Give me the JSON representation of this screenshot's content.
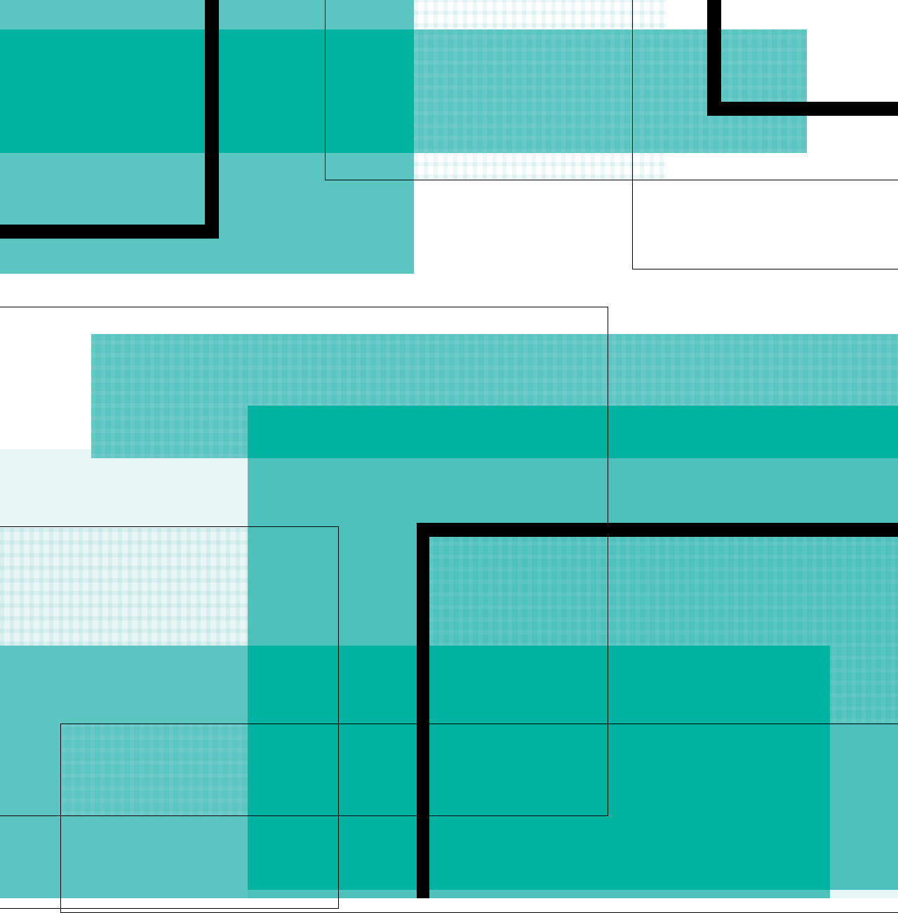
{
  "colors": {
    "light_teal": "#5bc5c1",
    "mid_teal": "#4fc1bc",
    "dark_teal": "#00b2a0",
    "pale_teal": "#e8f6f6",
    "line": "#000000"
  }
}
